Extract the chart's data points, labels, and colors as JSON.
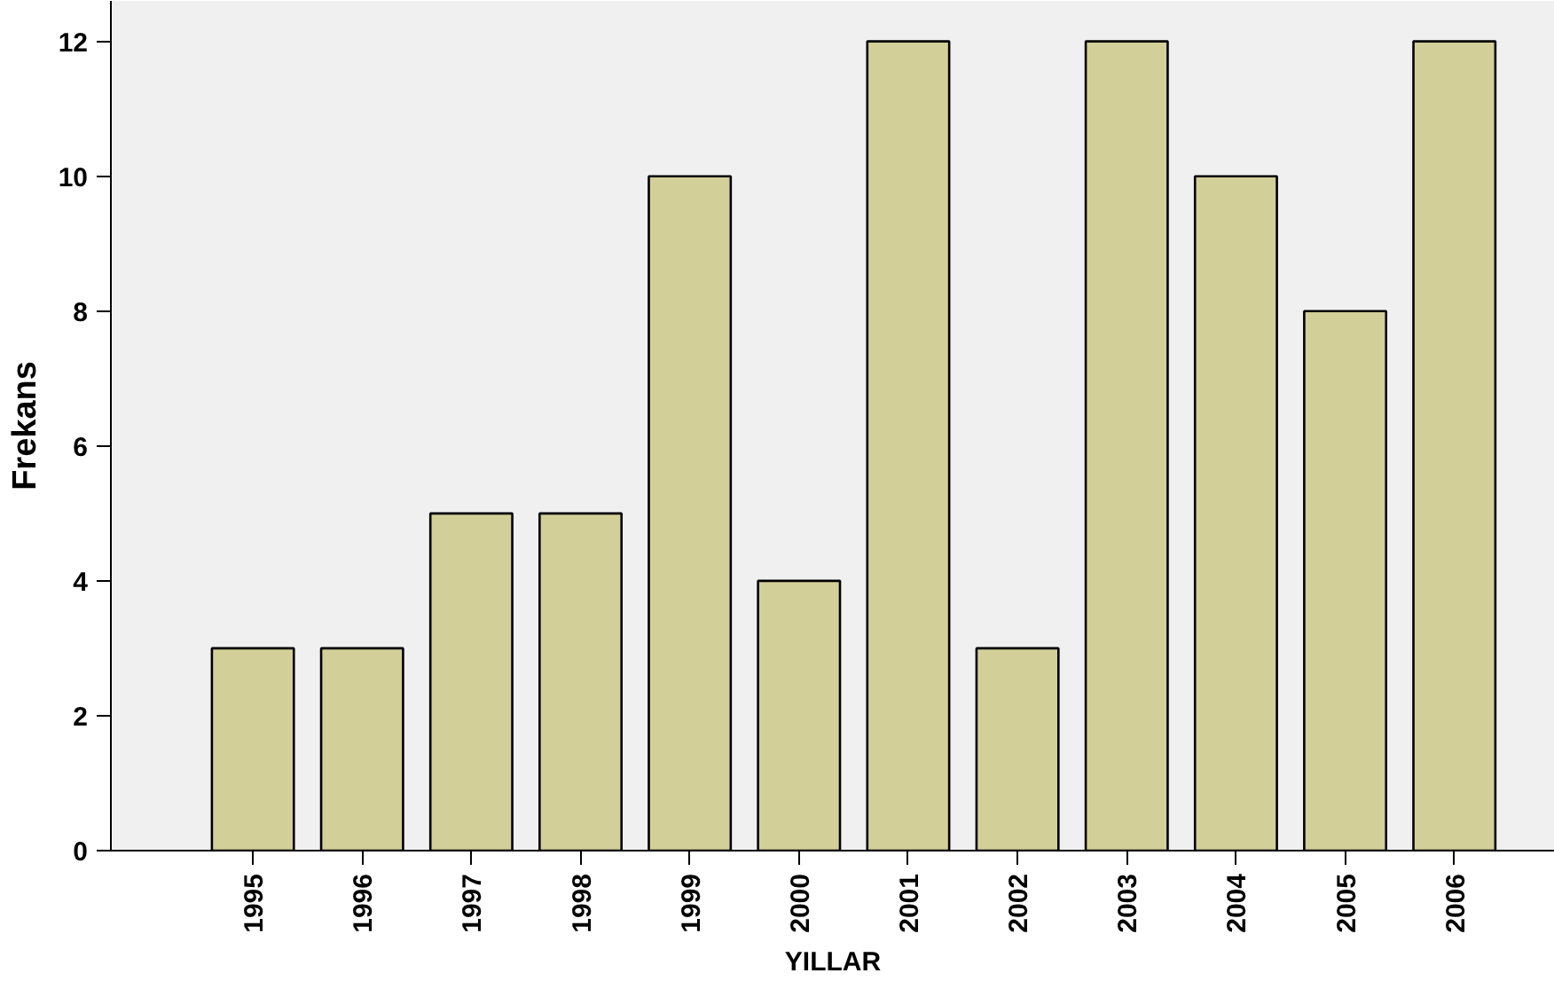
{
  "chart_data": {
    "type": "bar",
    "xlabel": "YILLAR",
    "ylabel": "Frekans",
    "categories": [
      "1995",
      "1996",
      "1997",
      "1998",
      "1999",
      "2000",
      "2001",
      "2002",
      "2003",
      "2004",
      "2005",
      "2006"
    ],
    "values": [
      3,
      3,
      5,
      5,
      10,
      4,
      12,
      3,
      12,
      10,
      8,
      12
    ],
    "color": "#d3cf98",
    "ylim": [
      0,
      12.6
    ],
    "yticks": [
      0,
      2,
      4,
      6,
      8,
      10,
      12
    ],
    "grid": false
  }
}
